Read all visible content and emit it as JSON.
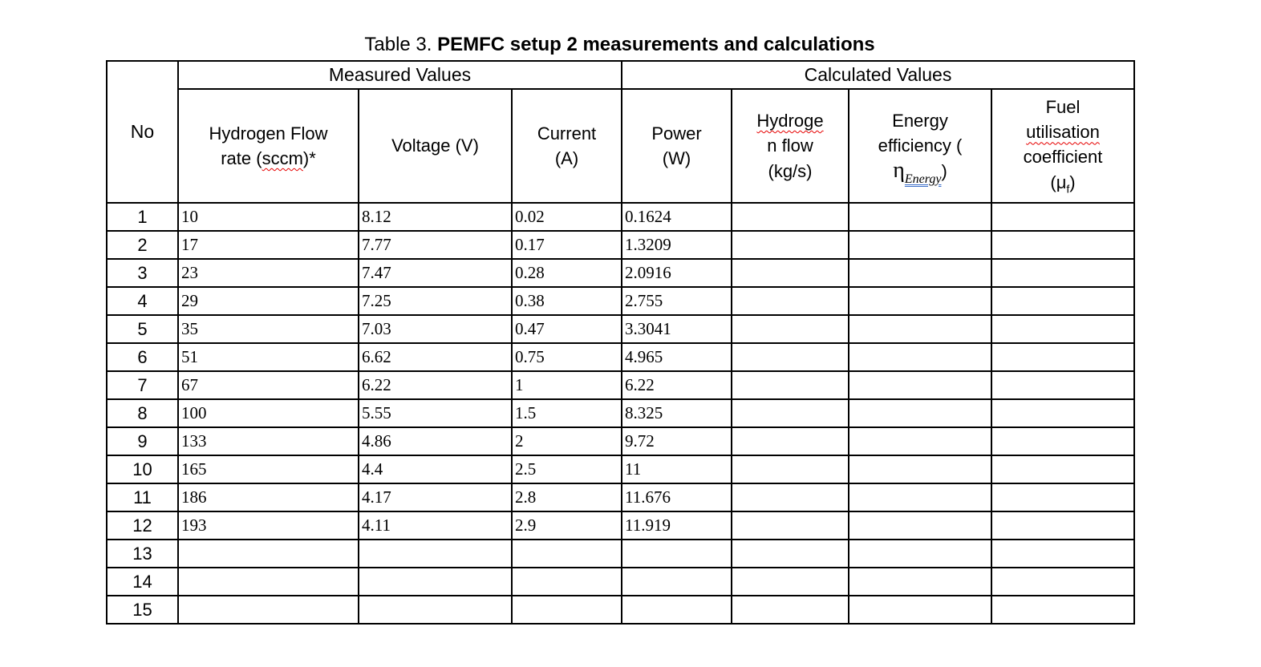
{
  "title": {
    "prefix": "Table 3. ",
    "main": "PEMFC setup 2 measurements and calculations"
  },
  "colors": {
    "spellcheck_red": "#e60000",
    "grammar_blue": "#3b6fc9"
  },
  "table": {
    "group_headers": {
      "measured": "Measured Values",
      "calculated": "Calculated Values"
    },
    "headers": {
      "no": "No",
      "h2rate": {
        "l1": "Hydrogen Flow",
        "l2a": "rate (",
        "l2b": "sccm",
        "l2c": ")*"
      },
      "voltage": "Voltage (V)",
      "current": {
        "l1": "Current",
        "l2": "(A)"
      },
      "power": {
        "l1": "Power",
        "l2": "(W)"
      },
      "h2flow": {
        "l1": "Hydroge",
        "l2": "n flow",
        "l3": "(kg/s)"
      },
      "efficiency": {
        "l1": "Energy",
        "l2": "efficiency (",
        "eta": "η",
        "sub": "Energy",
        "close": ")"
      },
      "utilisation": {
        "l1": "Fuel",
        "l2": "utilisation",
        "l3": "coefficient",
        "l4a": "(μ",
        "l4b": "f",
        "l4c": ")"
      }
    },
    "rows": [
      [
        "1",
        "10",
        "8.12",
        "0.02",
        "0.1624",
        "",
        "",
        ""
      ],
      [
        "2",
        "17",
        "7.77",
        "0.17",
        "1.3209",
        "",
        "",
        ""
      ],
      [
        "3",
        "23",
        "7.47",
        "0.28",
        "2.0916",
        "",
        "",
        ""
      ],
      [
        "4",
        "29",
        "7.25",
        "0.38",
        "2.755",
        "",
        "",
        ""
      ],
      [
        "5",
        "35",
        "7.03",
        "0.47",
        "3.3041",
        "",
        "",
        ""
      ],
      [
        "6",
        "51",
        "6.62",
        "0.75",
        "4.965",
        "",
        "",
        ""
      ],
      [
        "7",
        "67",
        "6.22",
        "1",
        "6.22",
        "",
        "",
        ""
      ],
      [
        "8",
        "100",
        "5.55",
        "1.5",
        "8.325",
        "",
        "",
        ""
      ],
      [
        "9",
        "133",
        "4.86",
        "2",
        "9.72",
        "",
        "",
        ""
      ],
      [
        "10",
        "165",
        "4.4",
        "2.5",
        "11",
        "",
        "",
        ""
      ],
      [
        "11",
        "186",
        "4.17",
        "2.8",
        "11.676",
        "",
        "",
        ""
      ],
      [
        "12",
        "193",
        "4.11",
        "2.9",
        "11.919",
        "",
        "",
        ""
      ],
      [
        "13",
        "",
        "",
        "",
        "",
        "",
        "",
        ""
      ],
      [
        "14",
        "",
        "",
        "",
        "",
        "",
        "",
        ""
      ],
      [
        "15",
        "",
        "",
        "",
        "",
        "",
        "",
        ""
      ]
    ]
  }
}
